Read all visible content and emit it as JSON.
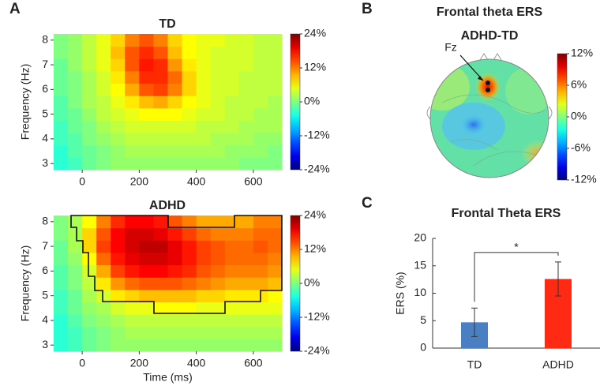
{
  "chart_data": [
    {
      "type": "heatmap",
      "panel": "A",
      "title": "TD",
      "ylabel": "Frequency (Hz)",
      "x_edges": [
        -100,
        -50,
        0,
        50,
        100,
        150,
        200,
        250,
        300,
        350,
        400,
        450,
        500,
        550,
        600,
        650,
        700
      ],
      "y_edges": [
        2.75,
        3.25,
        3.75,
        4.25,
        4.75,
        5.25,
        5.75,
        6.25,
        6.75,
        7.25,
        7.75,
        8.25
      ],
      "values": [
        [
          -4,
          -3,
          -1,
          0,
          1,
          1,
          1,
          1,
          1,
          1,
          1,
          1,
          1,
          0,
          0,
          0
        ],
        [
          -4,
          -2,
          -1,
          0,
          1,
          2,
          2,
          2,
          2,
          2,
          2,
          2,
          1,
          1,
          1,
          0
        ],
        [
          -3,
          -2,
          0,
          1,
          2,
          3,
          3,
          3,
          3,
          3,
          3,
          2,
          2,
          2,
          1,
          1
        ],
        [
          -3,
          -1,
          0,
          2,
          3,
          4,
          4,
          4,
          4,
          4,
          3,
          3,
          3,
          2,
          2,
          2
        ],
        [
          -2,
          -1,
          1,
          3,
          4,
          5,
          6,
          6,
          6,
          5,
          4,
          4,
          3,
          3,
          2,
          2
        ],
        [
          -2,
          0,
          2,
          3,
          5,
          7,
          9,
          10,
          8,
          6,
          5,
          4,
          3,
          3,
          3,
          2
        ],
        [
          -1,
          0,
          2,
          4,
          6,
          10,
          14,
          15,
          12,
          8,
          5,
          4,
          4,
          3,
          3,
          3
        ],
        [
          -1,
          0,
          2,
          4,
          7,
          12,
          16,
          16,
          13,
          8,
          5,
          4,
          4,
          3,
          3,
          3
        ],
        [
          -1,
          1,
          3,
          5,
          8,
          14,
          17,
          16,
          11,
          7,
          5,
          4,
          4,
          4,
          3,
          3
        ],
        [
          0,
          1,
          3,
          5,
          9,
          14,
          16,
          14,
          9,
          6,
          5,
          4,
          4,
          4,
          3,
          3
        ],
        [
          0,
          1,
          3,
          5,
          8,
          12,
          14,
          12,
          8,
          6,
          5,
          5,
          4,
          4,
          3,
          3
        ]
      ],
      "xlim": [
        -100,
        700
      ],
      "xticks": [
        0,
        200,
        400,
        600
      ],
      "ylim": [
        2.75,
        8.25
      ],
      "yticks": [
        3,
        4,
        5,
        6,
        7,
        8
      ],
      "colormap": "jet",
      "clim": [
        -24,
        24
      ],
      "cticks": [
        {
          "value": 24,
          "label": "24%"
        },
        {
          "value": 12,
          "label": "12%"
        },
        {
          "value": 0,
          "label": "0%"
        },
        {
          "value": -12,
          "label": "-12%"
        },
        {
          "value": -24,
          "label": "-24%"
        }
      ]
    },
    {
      "type": "heatmap",
      "title": "ADHD",
      "xlabel": "Time (ms)",
      "ylabel": "Frequency (Hz)",
      "x_edges": [
        -100,
        -50,
        0,
        50,
        100,
        150,
        200,
        250,
        300,
        350,
        400,
        450,
        500,
        550,
        600,
        650,
        700
      ],
      "y_edges": [
        2.75,
        3.25,
        3.75,
        4.25,
        4.75,
        5.25,
        5.75,
        6.25,
        6.75,
        7.25,
        7.75,
        8.25
      ],
      "values": [
        [
          -4,
          -3,
          -1,
          0,
          1,
          1,
          1,
          1,
          1,
          1,
          1,
          1,
          1,
          1,
          1,
          1
        ],
        [
          -4,
          -3,
          -1,
          0,
          1,
          2,
          2,
          2,
          2,
          2,
          2,
          2,
          2,
          2,
          2,
          2
        ],
        [
          -4,
          -2,
          0,
          1,
          2,
          3,
          3,
          3,
          3,
          3,
          3,
          3,
          3,
          3,
          3,
          3
        ],
        [
          -3,
          -1,
          1,
          2,
          4,
          5,
          5,
          6,
          6,
          6,
          5,
          5,
          5,
          5,
          5,
          5
        ],
        [
          -3,
          -1,
          2,
          4,
          7,
          8,
          9,
          9,
          9,
          9,
          8,
          8,
          7,
          7,
          7,
          6
        ],
        [
          -2,
          0,
          3,
          7,
          11,
          13,
          14,
          14,
          14,
          13,
          12,
          11,
          10,
          10,
          10,
          9
        ],
        [
          -2,
          0,
          4,
          10,
          15,
          17,
          18,
          18,
          17,
          16,
          14,
          13,
          12,
          12,
          12,
          11
        ],
        [
          -1,
          1,
          6,
          13,
          17,
          19,
          20,
          20,
          19,
          17,
          15,
          14,
          13,
          13,
          13,
          12
        ],
        [
          -1,
          2,
          8,
          15,
          18,
          20,
          21,
          21,
          19,
          17,
          15,
          14,
          13,
          13,
          14,
          13
        ],
        [
          0,
          2,
          8,
          14,
          18,
          20,
          20,
          19,
          17,
          15,
          13,
          12,
          12,
          12,
          13,
          13
        ],
        [
          0,
          2,
          6,
          12,
          16,
          18,
          18,
          17,
          14,
          12,
          10,
          10,
          10,
          10,
          12,
          12
        ]
      ],
      "xlim": [
        -100,
        700
      ],
      "xticks": [
        0,
        200,
        400,
        600
      ],
      "ylim": [
        2.75,
        8.25
      ],
      "yticks": [
        3,
        4,
        5,
        6,
        7,
        8
      ],
      "colormap": "jet",
      "clim": [
        -24,
        24
      ],
      "cticks": [
        {
          "value": 24,
          "label": "24%"
        },
        {
          "value": 12,
          "label": "12%"
        },
        {
          "value": 0,
          "label": "0%"
        },
        {
          "value": -12,
          "label": "-12%"
        },
        {
          "value": -24,
          "label": "-24%"
        }
      ]
    },
    {
      "type": "topoplot",
      "panel": "B",
      "title": "Frontal theta ERS",
      "subtitle": "ADHD-TD",
      "electrode": "Fz",
      "colormap": "jet",
      "clim": [
        -12,
        12
      ],
      "cticks": [
        {
          "value": 12,
          "label": "12%"
        },
        {
          "value": 6,
          "label": "6%"
        },
        {
          "value": 0,
          "label": "0%"
        },
        {
          "value": -6,
          "label": "-6%"
        },
        {
          "value": -12,
          "label": "-12%"
        }
      ]
    },
    {
      "type": "bar",
      "panel": "C",
      "title": "Frontal Theta ERS",
      "ylabel": "ERS (%)",
      "categories": [
        "TD",
        "ADHD"
      ],
      "values": [
        4.7,
        12.6
      ],
      "errors": [
        2.6,
        3.1
      ],
      "colors": [
        "#4a7fc4",
        "#ff2a14"
      ],
      "ylim": [
        0,
        20
      ],
      "yticks": [
        0,
        5,
        10,
        15,
        20
      ],
      "significance": "*"
    }
  ]
}
